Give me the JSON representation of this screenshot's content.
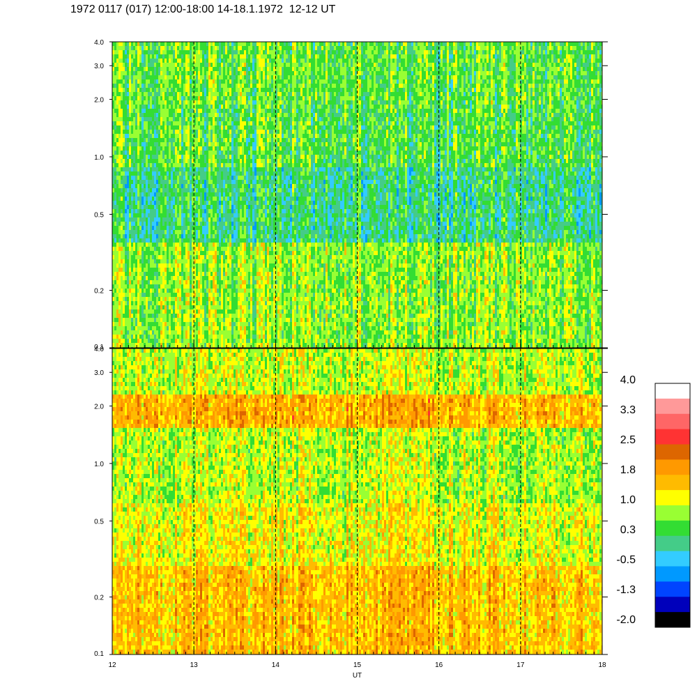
{
  "title": "1972 0117 (017) 12:00-18:00 14-18.1.1972  12-12 UT",
  "chart_data": [
    {
      "type": "heatmap",
      "panel": "upper",
      "x_range": [
        12,
        18
      ],
      "y_range": [
        0.1,
        4.0
      ],
      "y_scale": "log",
      "y_ticks": [
        "0.1",
        "0.2",
        "0.5",
        "1.0",
        "2.0",
        "3.0",
        "4.0"
      ],
      "x_ticks": [
        "12",
        "13",
        "14",
        "15",
        "16",
        "17",
        "18"
      ],
      "day_markers": [
        13,
        14,
        15,
        16,
        17
      ],
      "dominant_levels": "0.3 to 1.0 (green/cyan/yellow-green), lower values near 0.5-1.0"
    },
    {
      "type": "heatmap",
      "panel": "lower",
      "x_range": [
        12,
        18
      ],
      "y_range": [
        0.1,
        4.0
      ],
      "y_scale": "log",
      "y_ticks": [
        "0.1",
        "0.2",
        "0.5",
        "1.0",
        "2.0",
        "3.0",
        "4.0"
      ],
      "x_ticks": [
        "12",
        "13",
        "14",
        "15",
        "16",
        "17",
        "18"
      ],
      "xlabel": "UT",
      "day_markers": [
        13,
        14,
        15,
        16,
        17
      ],
      "dominant_levels": "1.0 to 2.5 (yellow/orange), band near 1.5-2.0"
    }
  ],
  "colorbar": {
    "labels": [
      "4.0",
      "3.3",
      "2.5",
      "1.8",
      "1.0",
      "0.3",
      "-0.5",
      "-1.3",
      "-2.0"
    ],
    "colors": [
      "#ffffff",
      "#ff9999",
      "#ff6666",
      "#ff3333",
      "#dd6600",
      "#ff9900",
      "#ffbb00",
      "#ffff00",
      "#99ff33",
      "#33dd33",
      "#44cc88",
      "#33ccff",
      "#0099ff",
      "#0044ff",
      "#0000bb",
      "#000000"
    ]
  }
}
